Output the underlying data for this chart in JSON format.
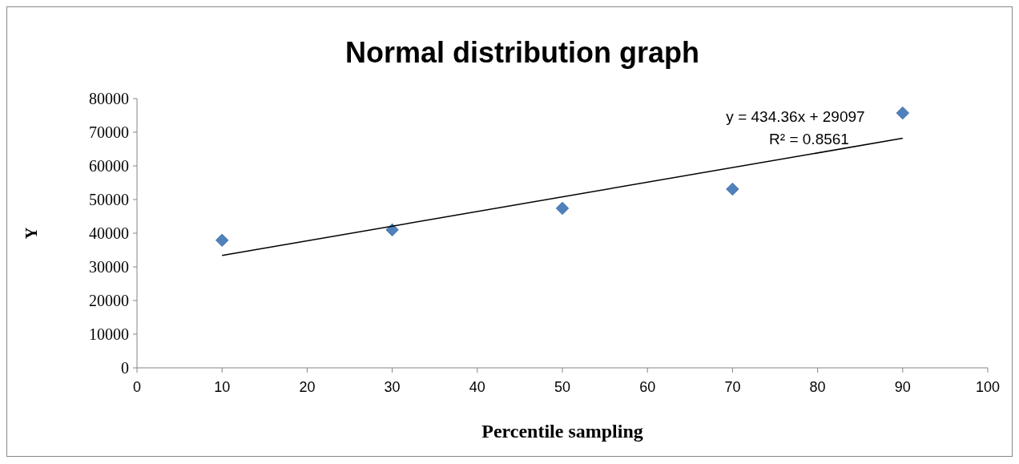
{
  "chart_data": {
    "type": "scatter",
    "title": "Normal distribution graph",
    "xlabel": "Percentile sampling",
    "ylabel": "Y",
    "x": [
      10,
      30,
      50,
      70,
      90
    ],
    "series": [
      {
        "color": "#4f81bd",
        "marker": "diamond",
        "values": [
          37900,
          41000,
          47400,
          53100,
          75700
        ]
      },
      {
        "type": "line",
        "color": "#000000",
        "marker": "none",
        "x": [
          10,
          90
        ],
        "values": [
          33400,
          68200
        ]
      }
    ],
    "annotations": [
      "y = 434.36x + 29097",
      "R² = 0.8561"
    ],
    "xlim": [
      0,
      100
    ],
    "xticks": [
      0,
      10,
      20,
      30,
      40,
      50,
      60,
      70,
      80,
      90,
      100
    ],
    "ylim": [
      0,
      80000
    ],
    "yticks": [
      0,
      10000,
      20000,
      30000,
      40000,
      50000,
      60000,
      70000,
      80000
    ],
    "grid": false
  }
}
